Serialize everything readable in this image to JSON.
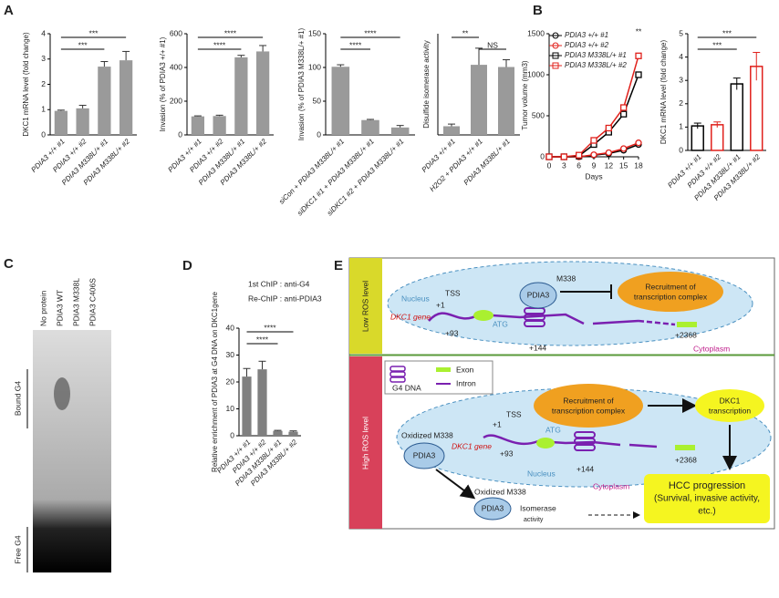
{
  "panel_labels": [
    "A",
    "B",
    "C",
    "D",
    "E"
  ],
  "chart_data": [
    {
      "type": "bar",
      "y_label": "DKC1 mRNA level (fold change)",
      "categories": [
        "PDIA3 +/+ #1",
        "PDIA3 +/+ #2",
        "PDIA3 M338L/+ #1",
        "PDIA3 M338L/+ #2"
      ],
      "values": [
        0.95,
        1.05,
        2.7,
        2.95
      ],
      "errors": [
        0.03,
        0.12,
        0.2,
        0.35
      ],
      "color": "#9a9a9a",
      "ylim": [
        0,
        4
      ],
      "yticks": [
        0,
        1,
        2,
        3,
        4
      ],
      "significance": [
        {
          "label": "***",
          "from": 0,
          "to": 3
        },
        {
          "label": "***",
          "from": 0,
          "to": 2
        }
      ]
    },
    {
      "type": "bar",
      "y_label": "Invasion  (% of PDIA3 +/+ #1)",
      "categories": [
        "PDIA3 +/+ #1",
        "PDIA3 +/+ #2",
        "PDIA3 M338L/+ #1",
        "PDIA3 M338L/+ #2"
      ],
      "values": [
        110,
        112,
        460,
        495
      ],
      "errors": [
        3,
        5,
        12,
        35
      ],
      "color": "#9a9a9a",
      "ylim": [
        0,
        600
      ],
      "yticks": [
        0,
        200,
        400,
        600
      ],
      "significance": [
        {
          "label": "****",
          "from": 0,
          "to": 3
        },
        {
          "label": "****",
          "from": 0,
          "to": 2
        }
      ]
    },
    {
      "type": "bar",
      "y_label": "Invasion  (% of PDIA3 M338L/+ #1)",
      "categories": [
        "siCon + PDIA3 M338L/+ #1",
        "siDKC1 #1 + PDIA3 M338L/+ #1",
        "siDKC1 #2 + PDIA3 M338L/+ #1"
      ],
      "values": [
        101,
        22,
        11
      ],
      "errors": [
        3,
        1,
        3
      ],
      "color": "#9a9a9a",
      "ylim": [
        0,
        150
      ],
      "yticks": [
        0,
        50,
        100,
        150
      ],
      "significance": [
        {
          "label": "****",
          "from": 0,
          "to": 2
        },
        {
          "label": "****",
          "from": 0,
          "to": 1
        }
      ]
    },
    {
      "type": "bar",
      "y_label": "Disulfide isomerase activity",
      "categories": [
        "PDIA3 +/+ #1",
        "H2O2 + PDIA3 +/+ #1",
        "PDIA3 M338L/+ #1"
      ],
      "values": [
        1.2,
        9.7,
        9.4
      ],
      "errors": [
        0.3,
        2.3,
        1.0
      ],
      "color": "#9a9a9a",
      "ylim": [
        0,
        14
      ],
      "significance": [
        {
          "label": "**",
          "from": 0,
          "to": 1
        },
        {
          "label": "NS",
          "from": 1,
          "to": 2
        }
      ]
    },
    {
      "type": "line",
      "y_label": "Tumor volume (mm3)",
      "x_label": "Days",
      "x": [
        0,
        3,
        6,
        9,
        12,
        15,
        18
      ],
      "xlim": [
        0,
        18
      ],
      "xticks": [
        0,
        3,
        6,
        9,
        12,
        15,
        18
      ],
      "ylim": [
        0,
        1500
      ],
      "yticks": [
        0,
        500,
        1000,
        1500
      ],
      "annotation": "**",
      "series": [
        {
          "name": "PDIA3 +/+ #1",
          "color": "#000000",
          "marker": "circle",
          "values": [
            0,
            0,
            0,
            20,
            40,
            80,
            150
          ]
        },
        {
          "name": "PDIA3 +/+ #2",
          "color": "#e0201b",
          "marker": "circle",
          "values": [
            0,
            0,
            0,
            25,
            50,
            100,
            170
          ]
        },
        {
          "name": "PDIA3 M338L/+ #1",
          "color": "#000000",
          "marker": "square",
          "values": [
            0,
            0,
            10,
            150,
            300,
            520,
            1000
          ]
        },
        {
          "name": "PDIA3 M338L/+ #2",
          "color": "#e0201b",
          "marker": "square",
          "values": [
            0,
            0,
            20,
            200,
            350,
            600,
            1230
          ]
        }
      ]
    },
    {
      "type": "bar_outline",
      "y_label": "DKC1 mRNA level (fold change)",
      "categories": [
        "PDIA3 +/+ #1",
        "PDIA3 +/+ #2",
        "PDIA3 M338L/+ #1",
        "PDIA3 M338L/+ #2"
      ],
      "values": [
        1.05,
        1.1,
        2.85,
        3.6
      ],
      "errors": [
        0.12,
        0.12,
        0.25,
        0.6
      ],
      "colors": [
        "#000000",
        "#e0201b",
        "#000000",
        "#e0201b"
      ],
      "ylim": [
        0,
        5
      ],
      "yticks": [
        0,
        1,
        2,
        3,
        4,
        5
      ],
      "significance": [
        {
          "label": "***",
          "from": 0,
          "to": 3
        },
        {
          "label": "***",
          "from": 0,
          "to": 2
        }
      ]
    },
    {
      "type": "bar",
      "y_label": "Relative enrichment of PDIA3 at G4 DNA on DKC1gene",
      "notes": [
        "1st ChIP : anti-G4",
        "Re-ChIP : anti-PDIA3"
      ],
      "categories": [
        "PDIA3 +/+ #1",
        "PDIA3 +/+ #2",
        "PDIA3 M338L/+ #1",
        "PDIA3 M338L/+ #2"
      ],
      "values": [
        22,
        24.7,
        1.8,
        1.5
      ],
      "errors": [
        3,
        3,
        0.2,
        0.3
      ],
      "color": "#808080",
      "ylim": [
        0,
        40
      ],
      "yticks": [
        0,
        10,
        20,
        30,
        40
      ],
      "significance": [
        {
          "label": "****",
          "from": 0,
          "to": 3
        },
        {
          "label": "****",
          "from": 0,
          "to": 2
        }
      ]
    }
  ],
  "gel": {
    "lanes": [
      "No protein",
      "PDIA3 WT",
      "PDIA3 M338L",
      "PDIA3 C406S"
    ],
    "bound": "Bound G4",
    "free": "Free G4"
  },
  "diagram": {
    "low": "Low ROS level",
    "high": "High ROS level",
    "nucleus": "Nucleus",
    "gene": "DKC1 gene",
    "p1": "+1",
    "tss": "TSS",
    "p93": "+93",
    "atg": "ATG",
    "pdia3": "PDIA3",
    "m338": "M338",
    "p144": "+144",
    "p2368": "+2368",
    "recruit": [
      "Recruitment of",
      "transcription complex"
    ],
    "cytoplasm": "Cytoplasm",
    "g4": "G4 DNA",
    "exon": "Exon",
    "intron": "Intron",
    "oxidized": "Oxidized M338",
    "transcription": [
      "DKC1",
      "transcription"
    ],
    "hcc": [
      "HCC progression",
      "(Survival, invasive activity,",
      "etc.)"
    ],
    "isomerase": [
      "Isomerase",
      "activity"
    ]
  }
}
